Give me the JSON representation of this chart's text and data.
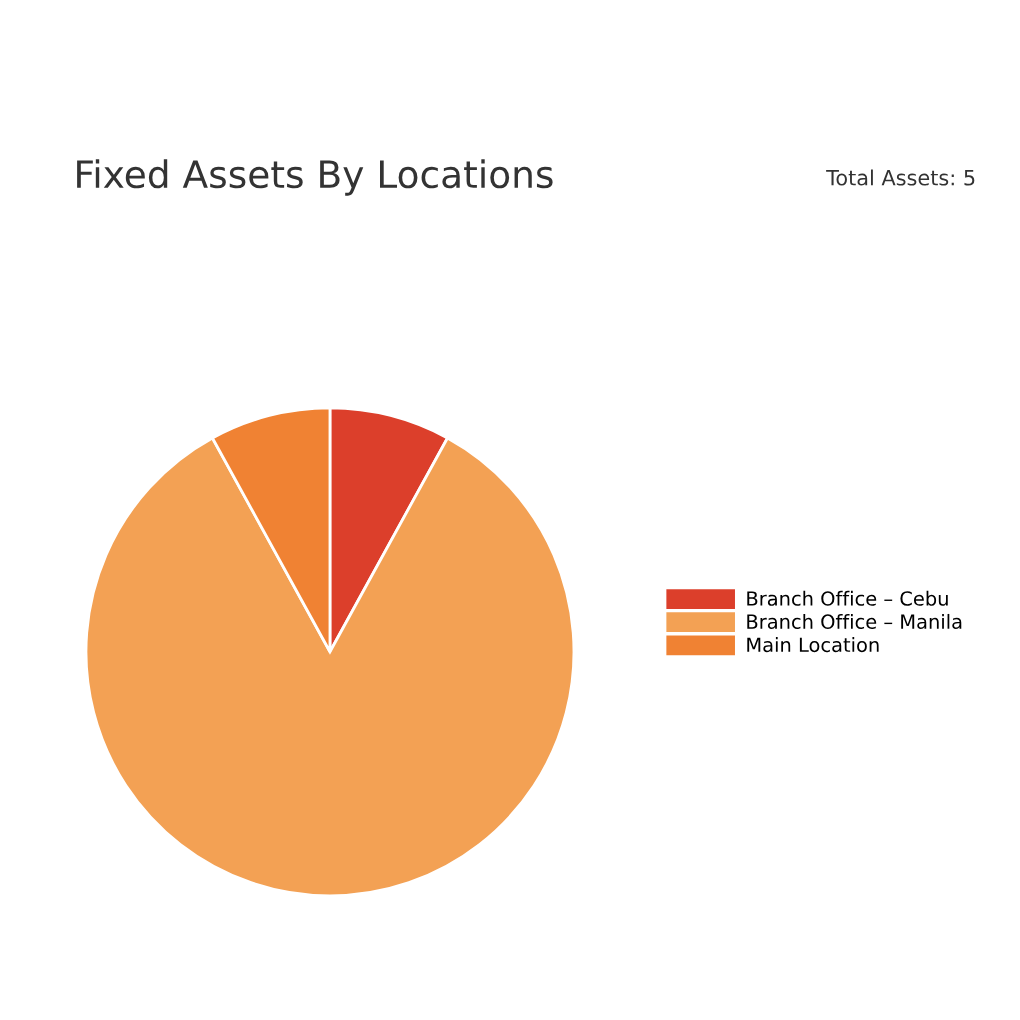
{
  "chart_data": {
    "type": "pie",
    "title": "Fixed Assets By Locations",
    "annotations": [
      "Total Assets: 5"
    ],
    "categories": [
      "Branch Office – Cebu",
      "Branch Office – Manila",
      "Main Location"
    ],
    "values": [
      8,
      84,
      8
    ],
    "colors": [
      "#dc3f2b",
      "#f3a154",
      "#f08233"
    ],
    "legend": "right"
  }
}
